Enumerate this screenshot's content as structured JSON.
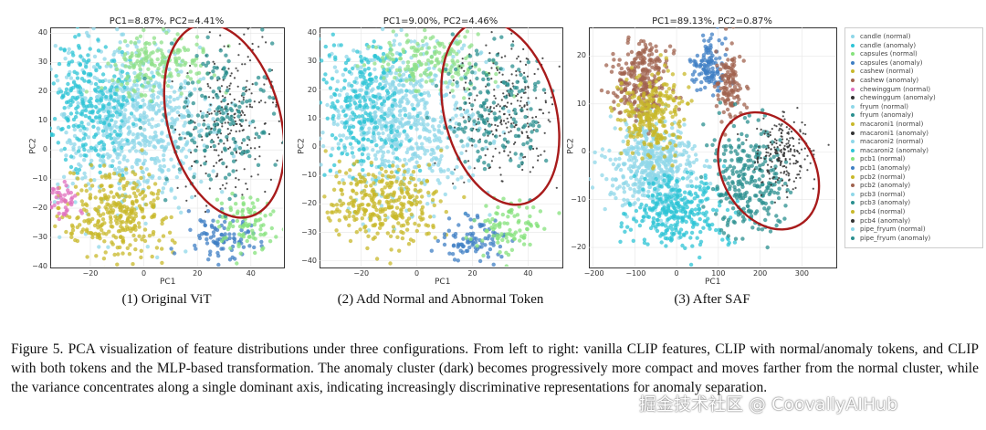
{
  "chart_data": [
    {
      "type": "scatter",
      "title": "PC1=8.87%, PC2=4.41%",
      "xlabel": "PC1",
      "ylabel": "PC2",
      "xticks": [
        "−20",
        "0",
        "20",
        "40"
      ],
      "yticks": [
        "40",
        "30",
        "20",
        "10",
        "0",
        "−10",
        "−20",
        "−30",
        "−40"
      ],
      "xlim": [
        -35,
        52
      ],
      "ylim": [
        -40,
        42
      ],
      "subcaption": "(1) Original ViT",
      "annotation": "red ellipse around anomaly region",
      "clusters": [
        {
          "color": "#8fd7e8",
          "x": -5,
          "y": 10,
          "sx": 14,
          "sy": 14,
          "n": 700
        },
        {
          "color": "#2ec4d6",
          "x": -20,
          "y": 15,
          "sx": 8,
          "sy": 12,
          "n": 250
        },
        {
          "color": "#c8b82a",
          "x": -10,
          "y": -22,
          "sx": 10,
          "sy": 7,
          "n": 320
        },
        {
          "color": "#8fe08a",
          "x": 5,
          "y": 30,
          "sx": 10,
          "sy": 5,
          "n": 180
        },
        {
          "color": "#3f7fc4",
          "x": 28,
          "y": -30,
          "sx": 6,
          "sy": 4,
          "n": 90
        },
        {
          "color": "#86e27c",
          "x": 38,
          "y": -25,
          "sx": 6,
          "sy": 5,
          "n": 90
        },
        {
          "color": "#e06fbd",
          "x": -30,
          "y": -18,
          "sx": 3,
          "sy": 3,
          "n": 40
        },
        {
          "color": "#333333",
          "x": 32,
          "y": 10,
          "sx": 9,
          "sy": 12,
          "n": 260
        },
        {
          "color": "#2a8f8f",
          "x": 28,
          "y": 12,
          "sx": 10,
          "sy": 12,
          "n": 160
        }
      ],
      "ellipse": {
        "cx": 30,
        "cy": 10,
        "rx": 21,
        "ry": 34,
        "rotate": -15
      }
    },
    {
      "type": "scatter",
      "title": "PC1=9.00%, PC2=4.46%",
      "xlabel": "PC1",
      "ylabel": "PC2",
      "xticks": [
        "−20",
        "0",
        "20",
        "40"
      ],
      "yticks": [
        "40",
        "30",
        "20",
        "10",
        "0",
        "−10",
        "−20",
        "−30",
        "−40"
      ],
      "xlim": [
        -35,
        52
      ],
      "ylim": [
        -42,
        42
      ],
      "subcaption": "(2) Add Normal and Abnormal Token",
      "annotation": "red ellipse around anomaly region",
      "clusters": [
        {
          "color": "#8fd7e8",
          "x": -5,
          "y": 10,
          "sx": 14,
          "sy": 14,
          "n": 700
        },
        {
          "color": "#2ec4d6",
          "x": -20,
          "y": 15,
          "sx": 8,
          "sy": 12,
          "n": 250
        },
        {
          "color": "#c8b82a",
          "x": -12,
          "y": -20,
          "sx": 10,
          "sy": 7,
          "n": 320
        },
        {
          "color": "#8fe08a",
          "x": 5,
          "y": 30,
          "sx": 10,
          "sy": 5,
          "n": 180
        },
        {
          "color": "#3f7fc4",
          "x": 20,
          "y": -33,
          "sx": 6,
          "sy": 4,
          "n": 90
        },
        {
          "color": "#86e27c",
          "x": 32,
          "y": -28,
          "sx": 6,
          "sy": 5,
          "n": 90
        },
        {
          "color": "#333333",
          "x": 32,
          "y": 12,
          "sx": 9,
          "sy": 12,
          "n": 260
        },
        {
          "color": "#2a8f8f",
          "x": 28,
          "y": 12,
          "sx": 10,
          "sy": 12,
          "n": 160
        }
      ],
      "ellipse": {
        "cx": 30,
        "cy": 12,
        "rx": 20,
        "ry": 33,
        "rotate": -15
      }
    },
    {
      "type": "scatter",
      "title": "PC1=89.13%, PC2=0.87%",
      "xlabel": "PC1",
      "ylabel": "PC2",
      "xticks": [
        "−200",
        "−100",
        "0",
        "100",
        "200",
        "300"
      ],
      "yticks": [
        "20",
        "10",
        "0",
        "−10",
        "−20"
      ],
      "xlim": [
        -210,
        380
      ],
      "ylim": [
        -24,
        26
      ],
      "subcaption": "(3) After SAF",
      "annotation": "red ellipse around anomaly region",
      "clusters": [
        {
          "color": "#8fd7e8",
          "x": -60,
          "y": -3,
          "sx": 50,
          "sy": 5,
          "n": 500
        },
        {
          "color": "#2ec4d6",
          "x": 0,
          "y": -12,
          "sx": 60,
          "sy": 4,
          "n": 300
        },
        {
          "color": "#a0634f",
          "x": -80,
          "y": 15,
          "sx": 35,
          "sy": 4,
          "n": 260
        },
        {
          "color": "#c8b82a",
          "x": -60,
          "y": 8,
          "sx": 35,
          "sy": 4,
          "n": 260
        },
        {
          "color": "#3f7fc4",
          "x": 80,
          "y": 18,
          "sx": 20,
          "sy": 3,
          "n": 120
        },
        {
          "color": "#a0634f",
          "x": 130,
          "y": 14,
          "sx": 18,
          "sy": 4,
          "n": 120
        },
        {
          "color": "#2a8f8f",
          "x": 170,
          "y": -6,
          "sx": 45,
          "sy": 6,
          "n": 260
        },
        {
          "color": "#333333",
          "x": 260,
          "y": 0,
          "sx": 35,
          "sy": 4,
          "n": 220
        }
      ],
      "ellipse": {
        "cx": 220,
        "cy": -4,
        "rx": 110,
        "ry": 13,
        "rotate": -30
      }
    }
  ],
  "legend": [
    {
      "label": "candle (normal)",
      "color": "#8fd7e8"
    },
    {
      "label": "candle (anomaly)",
      "color": "#2ec4d6"
    },
    {
      "label": "capsules (normal)",
      "color": "#86e27c"
    },
    {
      "label": "capsules (anomaly)",
      "color": "#3f7fc4"
    },
    {
      "label": "cashew (normal)",
      "color": "#c8b82a"
    },
    {
      "label": "cashew (anomaly)",
      "color": "#a0634f"
    },
    {
      "label": "chewinggum (normal)",
      "color": "#e06fbd"
    },
    {
      "label": "chewinggum (anomaly)",
      "color": "#333333"
    },
    {
      "label": "fryum (normal)",
      "color": "#8fd7e8"
    },
    {
      "label": "fryum (anomaly)",
      "color": "#2a8f8f"
    },
    {
      "label": "macaroni1 (normal)",
      "color": "#c8b82a"
    },
    {
      "label": "macaroni1 (anomaly)",
      "color": "#333333"
    },
    {
      "label": "macaroni2 (normal)",
      "color": "#8fd7e8"
    },
    {
      "label": "macaroni2 (anomaly)",
      "color": "#2ec4d6"
    },
    {
      "label": "pcb1 (normal)",
      "color": "#86e27c"
    },
    {
      "label": "pcb1 (anomaly)",
      "color": "#3f7fc4"
    },
    {
      "label": "pcb2 (normal)",
      "color": "#c8b82a"
    },
    {
      "label": "pcb2 (anomaly)",
      "color": "#a0634f"
    },
    {
      "label": "pcb3 (normal)",
      "color": "#8fd7e8"
    },
    {
      "label": "pcb3 (anomaly)",
      "color": "#2a8f8f"
    },
    {
      "label": "pcb4 (normal)",
      "color": "#c8b82a"
    },
    {
      "label": "pcb4 (anomaly)",
      "color": "#333333"
    },
    {
      "label": "pipe_fryum (normal)",
      "color": "#8fd7e8"
    },
    {
      "label": "pipe_fryum (anomaly)",
      "color": "#2a8f8f"
    }
  ],
  "figure_caption": "Figure 5. PCA visualization of feature distributions under three configurations. From left to right: vanilla CLIP features, CLIP with normal/anomaly tokens, and CLIP with both tokens and the MLP-based transformation. The anomaly cluster (dark) becomes progressively more compact and moves farther from the normal cluster, while the variance concentrates along a single dominant axis, indicating increasingly discriminative representations for anomaly separation.",
  "watermark": "掘金技术社区 @ CoovallyAIHub",
  "colors": {
    "ellipse": "#a81b1b",
    "axis": "#333333"
  }
}
